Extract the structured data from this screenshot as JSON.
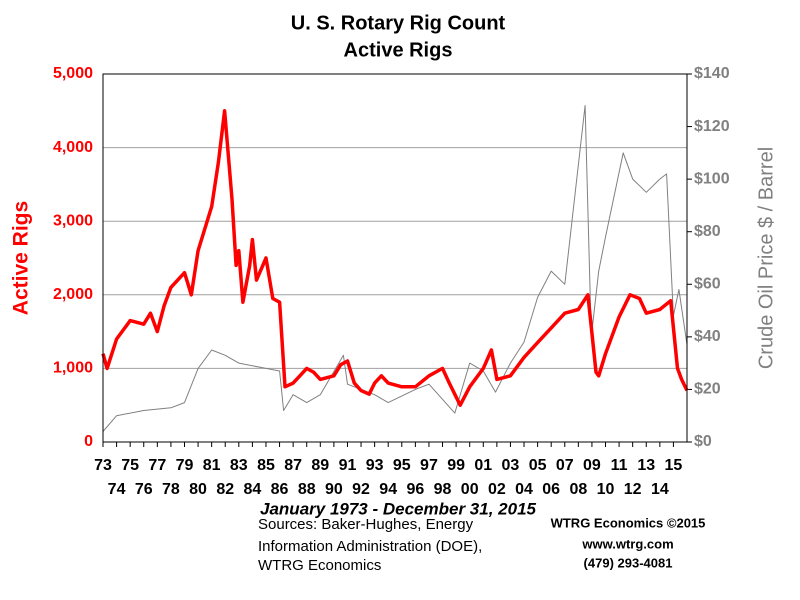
{
  "chart_data": {
    "type": "line",
    "title": [
      "U. S. Rotary Rig Count",
      "Active Rigs"
    ],
    "ylabel": "Active Rigs",
    "y2label": "Crude Oil Price $ / Barrel",
    "xlabel": "January 1973 - December 31, 2015",
    "sources": [
      "Sources: Baker-Hughes, Energy",
      "Information Administration (DOE),",
      "WTRG Economics"
    ],
    "credits": [
      "WTRG Economics  ©2015",
      "www.wtrg.com",
      "(479) 293-4081"
    ],
    "xlim": [
      1973,
      2016
    ],
    "xticks": [
      {
        "value": 1973,
        "label": "73"
      },
      {
        "value": 1974,
        "label": "74"
      },
      {
        "value": 1975,
        "label": "75"
      },
      {
        "value": 1976,
        "label": "76"
      },
      {
        "value": 1977,
        "label": "77"
      },
      {
        "value": 1978,
        "label": "78"
      },
      {
        "value": 1979,
        "label": "79"
      },
      {
        "value": 1980,
        "label": "80"
      },
      {
        "value": 1981,
        "label": "81"
      },
      {
        "value": 1982,
        "label": "82"
      },
      {
        "value": 1983,
        "label": "83"
      },
      {
        "value": 1984,
        "label": "84"
      },
      {
        "value": 1985,
        "label": "85"
      },
      {
        "value": 1986,
        "label": "86"
      },
      {
        "value": 1987,
        "label": "87"
      },
      {
        "value": 1988,
        "label": "88"
      },
      {
        "value": 1989,
        "label": "89"
      },
      {
        "value": 1990,
        "label": "90"
      },
      {
        "value": 1991,
        "label": "91"
      },
      {
        "value": 1992,
        "label": "92"
      },
      {
        "value": 1993,
        "label": "93"
      },
      {
        "value": 1994,
        "label": "94"
      },
      {
        "value": 1995,
        "label": "95"
      },
      {
        "value": 1996,
        "label": "96"
      },
      {
        "value": 1997,
        "label": "97"
      },
      {
        "value": 1998,
        "label": "98"
      },
      {
        "value": 1999,
        "label": "99"
      },
      {
        "value": 2000,
        "label": "00"
      },
      {
        "value": 2001,
        "label": "01"
      },
      {
        "value": 2002,
        "label": "02"
      },
      {
        "value": 2003,
        "label": "03"
      },
      {
        "value": 2004,
        "label": "04"
      },
      {
        "value": 2005,
        "label": "05"
      },
      {
        "value": 2006,
        "label": "06"
      },
      {
        "value": 2007,
        "label": "07"
      },
      {
        "value": 2008,
        "label": "08"
      },
      {
        "value": 2009,
        "label": "09"
      },
      {
        "value": 2010,
        "label": "10"
      },
      {
        "value": 2011,
        "label": "11"
      },
      {
        "value": 2012,
        "label": "12"
      },
      {
        "value": 2013,
        "label": "13"
      },
      {
        "value": 2014,
        "label": "14"
      },
      {
        "value": 2015,
        "label": "15"
      }
    ],
    "ylim": [
      0,
      5000
    ],
    "yticks": [
      0,
      {
        "value": 1000,
        "label": "1,000"
      },
      {
        "value": 2000,
        "label": "2,000"
      },
      {
        "value": 3000,
        "label": "3,000"
      },
      {
        "value": 4000,
        "label": "4,000"
      },
      {
        "value": 5000,
        "label": "5,000"
      }
    ],
    "y2lim": [
      0,
      140
    ],
    "y2ticks": [
      {
        "value": 0,
        "label": "$0"
      },
      {
        "value": 20,
        "label": "$20"
      },
      {
        "value": 40,
        "label": "$40"
      },
      {
        "value": 60,
        "label": "$60"
      },
      {
        "value": 80,
        "label": "$80"
      },
      {
        "value": 100,
        "label": "$100"
      },
      {
        "value": 120,
        "label": "$120"
      },
      {
        "value": 140,
        "label": "$140"
      }
    ],
    "grid": true,
    "series": [
      {
        "color": "#ff0000",
        "x": [
          1973,
          1973.3,
          1974,
          1975,
          1976,
          1976.5,
          1977,
          1977.5,
          1978,
          1979,
          1979.5,
          1980,
          1981,
          1981.5,
          1981.95,
          1982.5,
          1982.8,
          1983,
          1983.3,
          1983.8,
          1984,
          1984.3,
          1985,
          1985.5,
          1986,
          1986.4,
          1987,
          1987.5,
          1988,
          1988.5,
          1989,
          1990,
          1990.5,
          1991,
          1991.5,
          1992,
          1992.6,
          1993,
          1993.5,
          1994,
          1995,
          1996,
          1997,
          1998,
          1998.5,
          1999.3,
          2000,
          2001,
          2001.6,
          2002,
          2003,
          2004,
          2005,
          2006,
          2007,
          2008,
          2008.7,
          2009.3,
          2009.5,
          2010,
          2011,
          2011.8,
          2012.5,
          2013,
          2014,
          2014.8,
          2015.3,
          2015.6,
          2016
        ],
        "values": [
          1200,
          1000,
          1400,
          1650,
          1600,
          1750,
          1500,
          1850,
          2100,
          2300,
          2000,
          2600,
          3200,
          3800,
          4500,
          3300,
          2400,
          2600,
          1900,
          2400,
          2750,
          2200,
          2500,
          1950,
          1900,
          750,
          800,
          900,
          1000,
          950,
          850,
          900,
          1050,
          1100,
          800,
          700,
          650,
          800,
          900,
          800,
          750,
          750,
          900,
          1000,
          800,
          500,
          750,
          1000,
          1250,
          850,
          900,
          1150,
          1350,
          1550,
          1750,
          1800,
          2000,
          950,
          900,
          1200,
          1700,
          2000,
          1950,
          1750,
          1800,
          1920,
          1000,
          850,
          700
        ]
      },
      {
        "color": "#808080",
        "axis": "y2",
        "x": [
          1973,
          1974,
          1976,
          1978,
          1979,
          1980,
          1981,
          1982,
          1983,
          1985,
          1986,
          1986.3,
          1987,
          1988,
          1989,
          1990.7,
          1991,
          1993,
          1994,
          1996,
          1997,
          1998.9,
          2000,
          2001,
          2001.9,
          2003,
          2004,
          2005,
          2006,
          2007,
          2008.5,
          2008.95,
          2009.5,
          2010,
          2011.3,
          2012,
          2013,
          2014,
          2014.5,
          2015,
          2015.4,
          2016
        ],
        "values": [
          4,
          10,
          12,
          13,
          15,
          28,
          35,
          33,
          30,
          28,
          27,
          12,
          18,
          15,
          18,
          33,
          22,
          18,
          15,
          20,
          22,
          11,
          30,
          27,
          19,
          30,
          38,
          55,
          65,
          60,
          128,
          40,
          65,
          78,
          110,
          100,
          95,
          100,
          102,
          48,
          58,
          37
        ]
      }
    ]
  }
}
